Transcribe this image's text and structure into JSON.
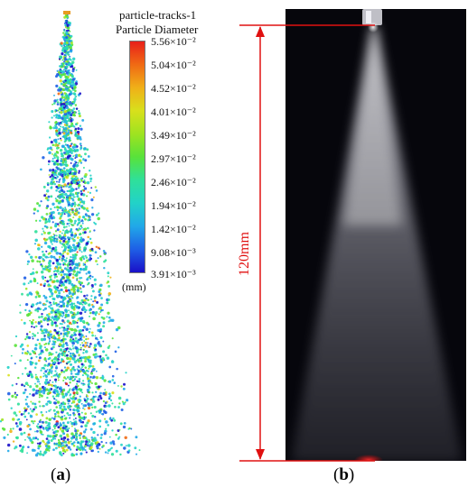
{
  "panel_a": {
    "legend_title_1": "particle-tracks-1",
    "legend_title_2": "Particle Diameter",
    "ticks": [
      "5.56×10⁻²",
      "5.04×10⁻²",
      "4.52×10⁻²",
      "4.01×10⁻²",
      "3.49×10⁻²",
      "2.97×10⁻²",
      "2.46×10⁻²",
      "1.94×10⁻²",
      "1.42×10⁻²",
      "9.08×10⁻³",
      "3.91×10⁻³"
    ],
    "units": "(mm)",
    "caption_letter": "a",
    "colorscale": [
      "#1a10c8",
      "#1e5fe6",
      "#21a8e8",
      "#22d2c8",
      "#2fe09a",
      "#58e23a",
      "#9fe320",
      "#d8e01c",
      "#f0b018",
      "#f06a14",
      "#e8201a"
    ]
  },
  "panel_b": {
    "dimension_label": "120mm",
    "caption_letter": "b",
    "annotation_color": "#e01010"
  }
}
